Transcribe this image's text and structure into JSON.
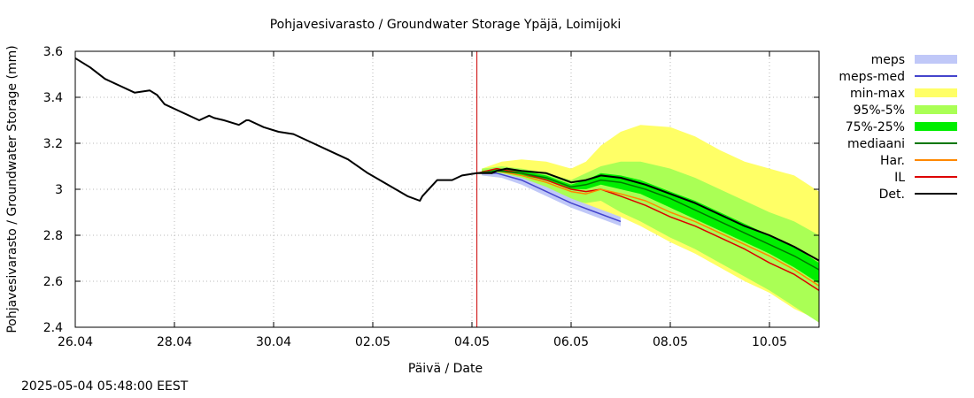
{
  "chart_data": {
    "type": "line",
    "title": "Pohjavesivarasto / Groundwater Storage   Ypäjä, Loimijoki",
    "xlabel": "Päivä / Date",
    "ylabel": "Pohjavesivarasto / Groundwater Storage (mm)",
    "x_unit": "day of period (0 = 26.04)",
    "xlim": [
      0,
      15
    ],
    "ylim": [
      2.4,
      3.6
    ],
    "x_ticks": [
      {
        "x": 0,
        "label": "26.04"
      },
      {
        "x": 2,
        "label": "28.04"
      },
      {
        "x": 4,
        "label": "30.04"
      },
      {
        "x": 6,
        "label": "02.05"
      },
      {
        "x": 8,
        "label": "04.05"
      },
      {
        "x": 10,
        "label": "06.05"
      },
      {
        "x": 12,
        "label": "08.05"
      },
      {
        "x": 14,
        "label": "10.05"
      }
    ],
    "y_ticks": [
      {
        "y": 2.4,
        "label": "2.4"
      },
      {
        "y": 2.6,
        "label": "2.6"
      },
      {
        "y": 2.8,
        "label": "2.8"
      },
      {
        "y": 3.0,
        "label": "3"
      },
      {
        "y": 3.2,
        "label": "3.2"
      },
      {
        "y": 3.4,
        "label": "3.4"
      },
      {
        "y": 3.6,
        "label": "3.6"
      }
    ],
    "grid": true,
    "forecast_start_x": 8.1,
    "forecast_line_color": "#cc0000",
    "bands": [
      {
        "name": "min-max",
        "color": "#ffff66",
        "x": [
          8.2,
          8.6,
          9.0,
          9.5,
          10.0,
          10.3,
          10.6,
          11.0,
          11.4,
          12.0,
          12.5,
          13.0,
          13.5,
          14.0,
          14.5,
          15.0
        ],
        "upper": [
          3.09,
          3.12,
          3.13,
          3.12,
          3.09,
          3.12,
          3.19,
          3.25,
          3.28,
          3.27,
          3.23,
          3.17,
          3.12,
          3.09,
          3.06,
          2.99
        ],
        "lower": [
          3.06,
          3.05,
          3.03,
          2.99,
          2.95,
          2.92,
          2.91,
          2.88,
          2.84,
          2.77,
          2.72,
          2.66,
          2.6,
          2.55,
          2.48,
          2.43
        ]
      },
      {
        "name": "95%-5%",
        "color": "#aaff55",
        "x": [
          8.2,
          8.6,
          9.0,
          9.5,
          10.0,
          10.3,
          10.6,
          11.0,
          11.4,
          12.0,
          12.5,
          13.0,
          13.5,
          14.0,
          14.5,
          15.0
        ],
        "upper": [
          3.09,
          3.1,
          3.09,
          3.07,
          3.04,
          3.07,
          3.1,
          3.12,
          3.12,
          3.09,
          3.05,
          3.0,
          2.95,
          2.9,
          2.86,
          2.8
        ],
        "lower": [
          3.07,
          3.06,
          3.04,
          3.0,
          2.95,
          2.94,
          2.95,
          2.9,
          2.86,
          2.79,
          2.74,
          2.68,
          2.62,
          2.56,
          2.49,
          2.42
        ]
      },
      {
        "name": "75%-25%",
        "color": "#00ee00",
        "x": [
          8.2,
          8.6,
          9.0,
          9.5,
          10.0,
          10.3,
          10.6,
          11.0,
          11.4,
          12.0,
          12.5,
          13.0,
          13.5,
          14.0,
          14.5,
          15.0
        ],
        "upper": [
          3.08,
          3.09,
          3.08,
          3.06,
          3.02,
          3.04,
          3.07,
          3.06,
          3.04,
          2.99,
          2.95,
          2.9,
          2.85,
          2.8,
          2.75,
          2.68
        ],
        "lower": [
          3.07,
          3.08,
          3.06,
          3.04,
          3.0,
          3.0,
          3.02,
          3.0,
          2.98,
          2.92,
          2.87,
          2.82,
          2.77,
          2.72,
          2.66,
          2.59
        ]
      },
      {
        "name": "meps",
        "color": "#c0c8f8",
        "x": [
          8.2,
          8.6,
          9.0,
          9.5,
          10.0,
          10.5,
          11.0
        ],
        "upper": [
          3.07,
          3.07,
          3.05,
          3.01,
          2.96,
          2.92,
          2.88
        ],
        "lower": [
          3.06,
          3.05,
          3.02,
          2.97,
          2.92,
          2.88,
          2.84
        ]
      }
    ],
    "series": [
      {
        "name": "Det.",
        "color": "#000000",
        "width": 2,
        "x": [
          0.0,
          0.3,
          0.6,
          0.9,
          1.2,
          1.5,
          1.65,
          1.8,
          2.1,
          2.5,
          2.7,
          2.8,
          3.0,
          3.3,
          3.45,
          3.5,
          3.8,
          4.1,
          4.4,
          4.8,
          5.1,
          5.5,
          5.9,
          6.3,
          6.7,
          6.95,
          7.0,
          7.3,
          7.45,
          7.6,
          7.8,
          8.1,
          8.4,
          8.5,
          8.7,
          9.0,
          9.5,
          10.0,
          10.3,
          10.6,
          11.0,
          11.5,
          12.0,
          12.5,
          13.0,
          13.5,
          14.0,
          14.5,
          15.0
        ],
        "y": [
          3.57,
          3.53,
          3.48,
          3.45,
          3.42,
          3.43,
          3.41,
          3.37,
          3.34,
          3.3,
          3.32,
          3.31,
          3.3,
          3.28,
          3.3,
          3.3,
          3.27,
          3.25,
          3.24,
          3.2,
          3.17,
          3.13,
          3.07,
          3.02,
          2.97,
          2.95,
          2.97,
          3.04,
          3.04,
          3.04,
          3.06,
          3.07,
          3.07,
          3.08,
          3.09,
          3.08,
          3.07,
          3.03,
          3.04,
          3.06,
          3.05,
          3.02,
          2.98,
          2.94,
          2.89,
          2.84,
          2.8,
          2.75,
          2.69
        ]
      },
      {
        "name": "mediaani",
        "color": "#007700",
        "width": 1.5,
        "x": [
          8.1,
          8.5,
          9.0,
          9.5,
          10.0,
          10.3,
          10.6,
          11.0,
          11.5,
          12.0,
          12.5,
          13.0,
          13.5,
          14.0,
          14.5,
          15.0
        ],
        "y": [
          3.07,
          3.08,
          3.07,
          3.05,
          3.01,
          3.02,
          3.04,
          3.03,
          3.0,
          2.96,
          2.91,
          2.86,
          2.81,
          2.76,
          2.71,
          2.65
        ]
      },
      {
        "name": "Har.",
        "color": "#ff8800",
        "width": 1.5,
        "x": [
          8.1,
          8.5,
          9.0,
          9.5,
          10.0,
          10.3,
          10.6,
          11.0,
          11.5,
          12.0,
          12.5,
          13.0,
          13.5,
          14.0,
          14.5,
          15.0
        ],
        "y": [
          3.07,
          3.08,
          3.06,
          3.03,
          2.99,
          2.98,
          3.0,
          2.98,
          2.95,
          2.9,
          2.86,
          2.81,
          2.76,
          2.71,
          2.65,
          2.58
        ]
      },
      {
        "name": "IL",
        "color": "#dd0000",
        "width": 1.5,
        "x": [
          8.1,
          8.5,
          9.0,
          9.5,
          10.0,
          10.3,
          10.6,
          11.0,
          11.5,
          12.0,
          12.5,
          13.0,
          13.5,
          14.0,
          14.5,
          15.0
        ],
        "y": [
          3.07,
          3.09,
          3.07,
          3.04,
          3.0,
          2.99,
          3.0,
          2.97,
          2.93,
          2.88,
          2.84,
          2.79,
          2.74,
          2.68,
          2.63,
          2.56
        ]
      },
      {
        "name": "meps-med",
        "color": "#4444cc",
        "width": 1.5,
        "x": [
          8.1,
          8.5,
          9.0,
          9.5,
          10.0,
          10.5,
          11.0
        ],
        "y": [
          3.07,
          3.07,
          3.04,
          2.99,
          2.94,
          2.9,
          2.86
        ]
      }
    ],
    "legend_placement": "right",
    "legend": [
      {
        "name": "meps",
        "kind": "band",
        "color": "#c0c8f8"
      },
      {
        "name": "meps-med",
        "kind": "line",
        "color": "#4444cc"
      },
      {
        "name": "min-max",
        "kind": "band",
        "color": "#ffff66"
      },
      {
        "name": "95%-5%",
        "kind": "band",
        "color": "#aaff55"
      },
      {
        "name": "75%-25%",
        "kind": "band",
        "color": "#00ee00"
      },
      {
        "name": "mediaani",
        "kind": "line",
        "color": "#007700"
      },
      {
        "name": "Har.",
        "kind": "line",
        "color": "#ff8800"
      },
      {
        "name": "IL",
        "kind": "line",
        "color": "#dd0000"
      },
      {
        "name": "Det.",
        "kind": "line",
        "color": "#000000"
      }
    ]
  },
  "footer": {
    "timestamp": "2025-05-04  05:48:00 EEST"
  }
}
